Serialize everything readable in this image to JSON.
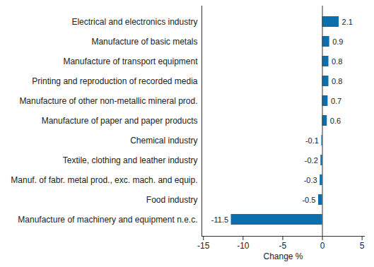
{
  "chart_data": {
    "type": "bar",
    "orientation": "horizontal",
    "categories": [
      "Electrical and electronics industry",
      "Manufacture of basic metals",
      "Manufacture of transport equipment",
      "Printing and reproduction of recorded media",
      "Manufacture of other non-metallic mineral prod.",
      "Manufacture of paper and paper products",
      "Chemical industry",
      "Textile, clothing and leather industry",
      "Manuf. of fabr. metal prod., exc. mach. and equip.",
      "Food industry",
      "Manufacture of machinery and equipment n.e.c."
    ],
    "values": [
      2.1,
      0.9,
      0.8,
      0.8,
      0.7,
      0.6,
      -0.1,
      -0.2,
      -0.3,
      -0.5,
      -11.5
    ],
    "color": "#0b6fae",
    "xlabel": "Change %",
    "xlim": [
      -15.2,
      5.3
    ],
    "xticks": [
      -15,
      -10,
      -5,
      0,
      5
    ],
    "grid": false,
    "data_labels": true
  }
}
